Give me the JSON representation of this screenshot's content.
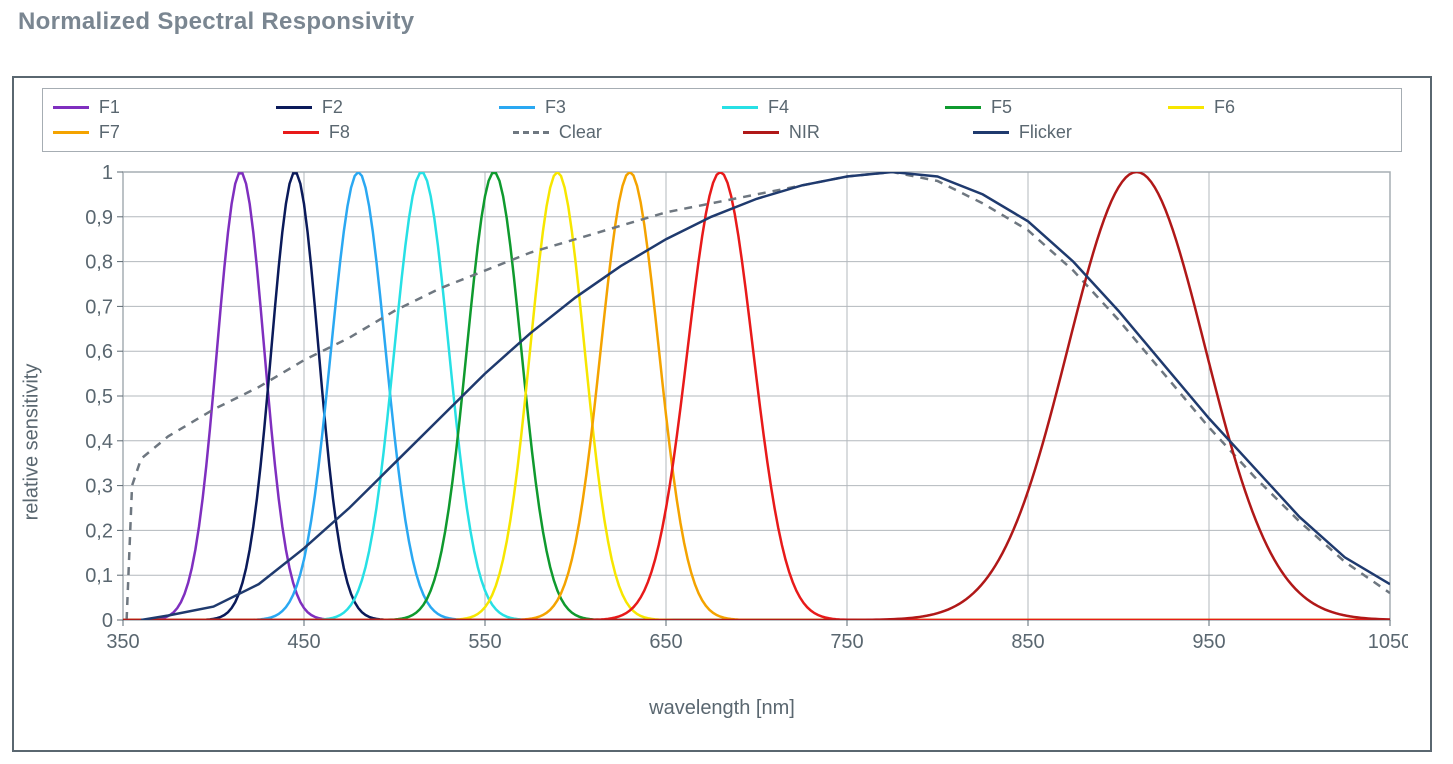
{
  "title": "Normalized Spectral Responsivity",
  "chart": {
    "type": "line",
    "xlabel": "wavelength [nm]",
    "ylabel": "relative sensitivity",
    "xlim": [
      350,
      1050
    ],
    "ylim": [
      0,
      1
    ],
    "xtick_step": 100,
    "ytick_step": 0.1,
    "decimal_separator": ",",
    "background_color": "#ffffff",
    "grid_color": "#b3b8bd",
    "axis_color": "#5a6770",
    "border_color": "#a6adb3",
    "text_color": "#5a6770",
    "line_width": 2.5,
    "tick_fontsize": 20,
    "label_fontsize": 20,
    "legend_fontsize": 18,
    "legend_rows": 2,
    "legend_cols": 6,
    "legend_border_color": "#a6adb3",
    "series": [
      {
        "name": "F1",
        "color": "#7f2fbf",
        "style": "solid",
        "kind": "gaussian",
        "peak_nm": 415,
        "sigma_nm": 13
      },
      {
        "name": "F2",
        "color": "#0a1a5a",
        "style": "solid",
        "kind": "gaussian",
        "peak_nm": 445,
        "sigma_nm": 13
      },
      {
        "name": "F3",
        "color": "#2aa8f2",
        "style": "solid",
        "kind": "gaussian",
        "peak_nm": 480,
        "sigma_nm": 15
      },
      {
        "name": "F4",
        "color": "#27e0e5",
        "style": "solid",
        "kind": "gaussian",
        "peak_nm": 515,
        "sigma_nm": 15
      },
      {
        "name": "F5",
        "color": "#0f9a2e",
        "style": "solid",
        "kind": "gaussian",
        "peak_nm": 555,
        "sigma_nm": 15
      },
      {
        "name": "F6",
        "color": "#f7e600",
        "style": "solid",
        "kind": "gaussian",
        "peak_nm": 590,
        "sigma_nm": 15
      },
      {
        "name": "F7",
        "color": "#f4a300",
        "style": "solid",
        "kind": "gaussian",
        "peak_nm": 630,
        "sigma_nm": 16
      },
      {
        "name": "F8",
        "color": "#e81a1a",
        "style": "solid",
        "kind": "gaussian",
        "peak_nm": 680,
        "sigma_nm": 18
      },
      {
        "name": "Clear",
        "color": "#6e7780",
        "style": "dashed",
        "kind": "points",
        "points": [
          {
            "x": 352,
            "y": 0.0
          },
          {
            "x": 355,
            "y": 0.3
          },
          {
            "x": 360,
            "y": 0.36
          },
          {
            "x": 375,
            "y": 0.41
          },
          {
            "x": 400,
            "y": 0.47
          },
          {
            "x": 425,
            "y": 0.52
          },
          {
            "x": 450,
            "y": 0.58
          },
          {
            "x": 475,
            "y": 0.63
          },
          {
            "x": 500,
            "y": 0.69
          },
          {
            "x": 525,
            "y": 0.74
          },
          {
            "x": 550,
            "y": 0.78
          },
          {
            "x": 575,
            "y": 0.82
          },
          {
            "x": 600,
            "y": 0.85
          },
          {
            "x": 625,
            "y": 0.88
          },
          {
            "x": 650,
            "y": 0.91
          },
          {
            "x": 675,
            "y": 0.93
          },
          {
            "x": 700,
            "y": 0.95
          },
          {
            "x": 725,
            "y": 0.97
          },
          {
            "x": 750,
            "y": 0.99
          },
          {
            "x": 775,
            "y": 1.0
          },
          {
            "x": 800,
            "y": 0.98
          },
          {
            "x": 825,
            "y": 0.93
          },
          {
            "x": 850,
            "y": 0.87
          },
          {
            "x": 875,
            "y": 0.78
          },
          {
            "x": 900,
            "y": 0.67
          },
          {
            "x": 925,
            "y": 0.55
          },
          {
            "x": 950,
            "y": 0.43
          },
          {
            "x": 975,
            "y": 0.32
          },
          {
            "x": 1000,
            "y": 0.22
          },
          {
            "x": 1025,
            "y": 0.13
          },
          {
            "x": 1050,
            "y": 0.06
          }
        ]
      },
      {
        "name": "NIR",
        "color": "#b01818",
        "style": "solid",
        "kind": "gaussian",
        "peak_nm": 910,
        "sigma_nm": 38
      },
      {
        "name": "Flicker",
        "color": "#1f3a6e",
        "style": "solid",
        "kind": "points",
        "points": [
          {
            "x": 360,
            "y": 0.0
          },
          {
            "x": 375,
            "y": 0.01
          },
          {
            "x": 400,
            "y": 0.03
          },
          {
            "x": 425,
            "y": 0.08
          },
          {
            "x": 450,
            "y": 0.16
          },
          {
            "x": 475,
            "y": 0.25
          },
          {
            "x": 500,
            "y": 0.35
          },
          {
            "x": 525,
            "y": 0.45
          },
          {
            "x": 550,
            "y": 0.55
          },
          {
            "x": 575,
            "y": 0.64
          },
          {
            "x": 600,
            "y": 0.72
          },
          {
            "x": 625,
            "y": 0.79
          },
          {
            "x": 650,
            "y": 0.85
          },
          {
            "x": 675,
            "y": 0.9
          },
          {
            "x": 700,
            "y": 0.94
          },
          {
            "x": 725,
            "y": 0.97
          },
          {
            "x": 750,
            "y": 0.99
          },
          {
            "x": 775,
            "y": 1.0
          },
          {
            "x": 800,
            "y": 0.99
          },
          {
            "x": 825,
            "y": 0.95
          },
          {
            "x": 850,
            "y": 0.89
          },
          {
            "x": 875,
            "y": 0.8
          },
          {
            "x": 900,
            "y": 0.69
          },
          {
            "x": 925,
            "y": 0.57
          },
          {
            "x": 950,
            "y": 0.45
          },
          {
            "x": 975,
            "y": 0.34
          },
          {
            "x": 1000,
            "y": 0.23
          },
          {
            "x": 1025,
            "y": 0.14
          },
          {
            "x": 1050,
            "y": 0.08
          }
        ]
      }
    ]
  }
}
